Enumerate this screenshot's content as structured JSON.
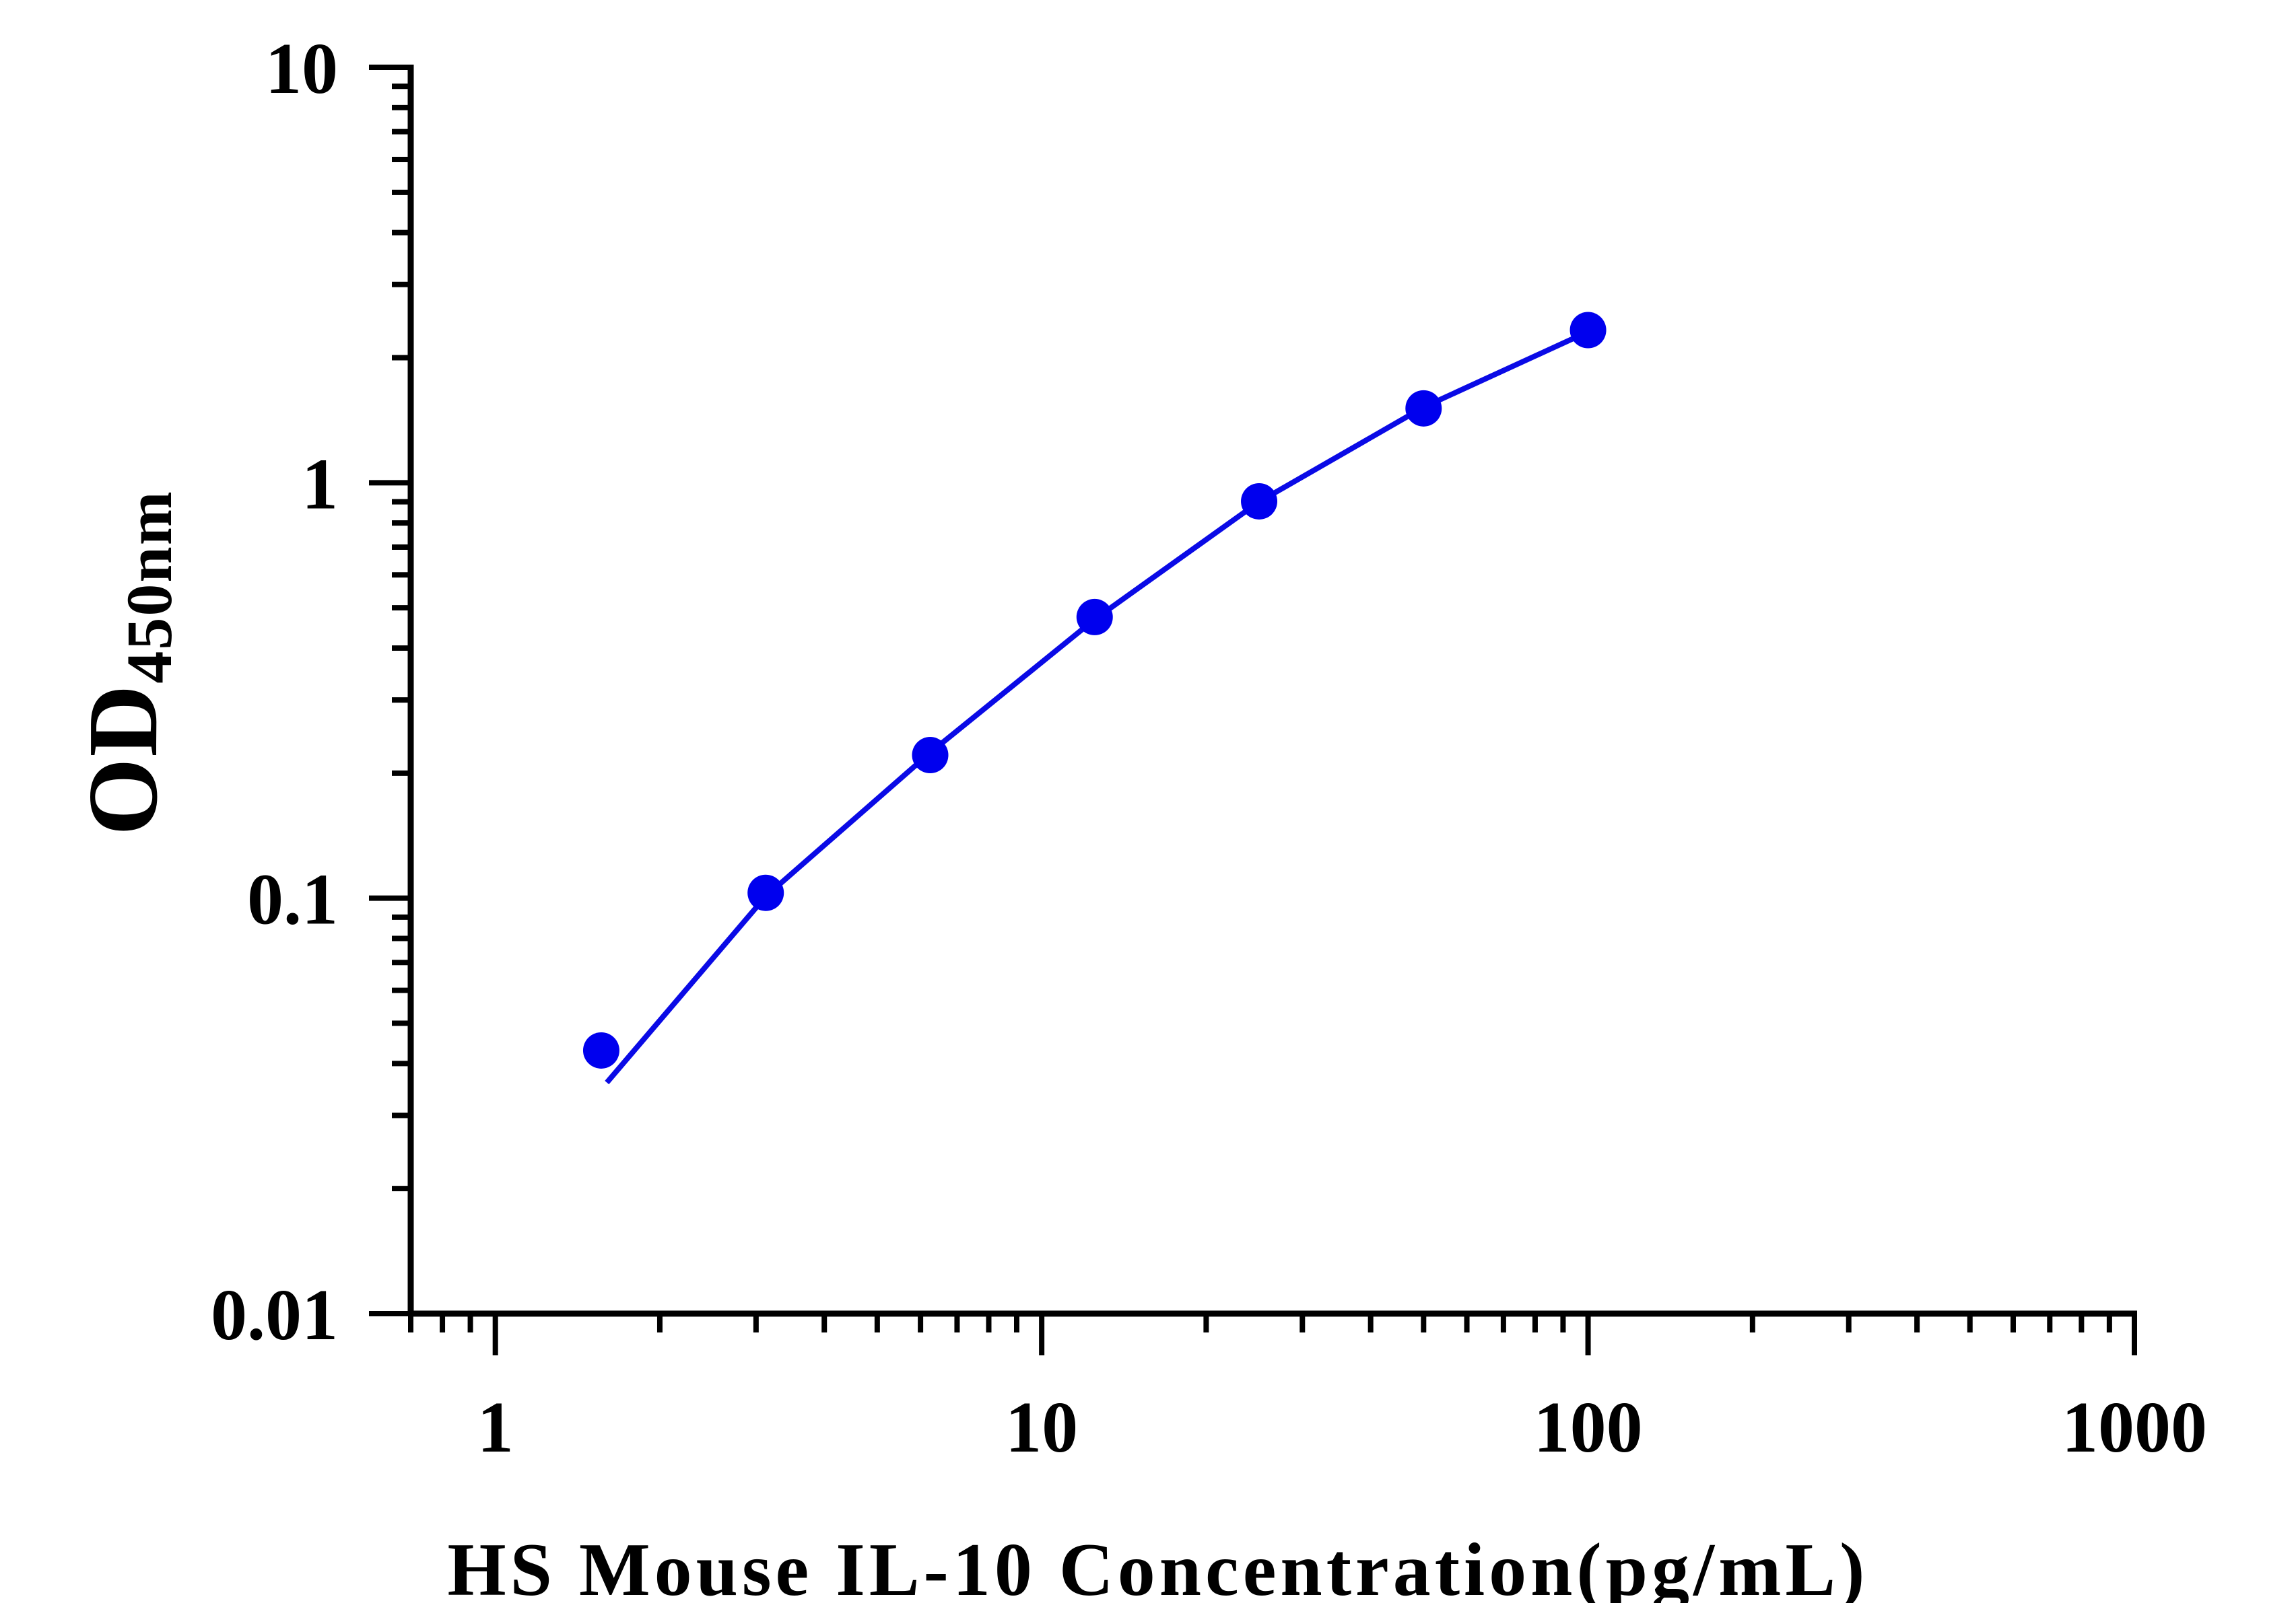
{
  "chart_data": {
    "type": "scatter",
    "xlabel": "HS Mouse IL-10 Concentration(pg/mL)",
    "ylabel_main": "OD",
    "ylabel_sub": "450nm",
    "xscale": "log",
    "yscale": "log",
    "xlim": [
      0.7,
      1000
    ],
    "ylim": [
      0.01,
      10
    ],
    "x_tick_labels": [
      "1",
      "10",
      "100",
      "1000"
    ],
    "y_tick_labels": [
      "0.01",
      "0.1",
      "1",
      "10"
    ],
    "grid": false,
    "series": [
      {
        "x": [
          1.5625,
          3.125,
          6.25,
          12.5,
          25,
          50,
          100
        ],
        "y": [
          0.043,
          0.103,
          0.221,
          0.475,
          0.902,
          1.51,
          2.33
        ]
      }
    ],
    "fit_curve": {
      "x": [
        1.6,
        3.125,
        6.25,
        12.5,
        25,
        50,
        100
      ],
      "y": [
        0.036,
        0.101,
        0.224,
        0.469,
        0.9,
        1.52,
        2.31
      ]
    },
    "colors": {
      "series": "#0000ee",
      "curve": "#0a0ae6",
      "axes": "#000000"
    }
  }
}
